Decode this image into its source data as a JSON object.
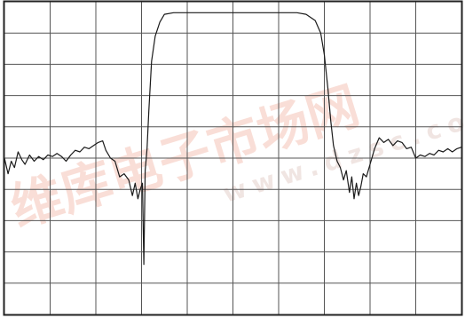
{
  "chart_data": {
    "type": "line",
    "title": "",
    "xlabel": "",
    "ylabel": "",
    "grid": true,
    "grid_divisions": {
      "x": 10,
      "y": 10
    },
    "xlim": [
      0,
      10
    ],
    "ylim": [
      0,
      10
    ],
    "series": [
      {
        "points": [
          [
            0.0,
            5.0
          ],
          [
            0.08,
            4.5
          ],
          [
            0.15,
            4.9
          ],
          [
            0.22,
            4.7
          ],
          [
            0.3,
            5.2
          ],
          [
            0.38,
            4.95
          ],
          [
            0.45,
            4.8
          ],
          [
            0.55,
            5.1
          ],
          [
            0.65,
            4.9
          ],
          [
            0.75,
            5.05
          ],
          [
            0.85,
            4.95
          ],
          [
            0.95,
            5.1
          ],
          [
            1.05,
            5.05
          ],
          [
            1.15,
            5.15
          ],
          [
            1.25,
            5.05
          ],
          [
            1.35,
            4.9
          ],
          [
            1.45,
            5.1
          ],
          [
            1.55,
            5.25
          ],
          [
            1.65,
            5.2
          ],
          [
            1.75,
            5.35
          ],
          [
            1.85,
            5.3
          ],
          [
            1.95,
            5.4
          ],
          [
            2.05,
            5.5
          ],
          [
            2.15,
            5.55
          ],
          [
            2.22,
            5.25
          ],
          [
            2.32,
            5.0
          ],
          [
            2.42,
            4.9
          ],
          [
            2.52,
            4.4
          ],
          [
            2.62,
            4.5
          ],
          [
            2.72,
            4.3
          ],
          [
            2.8,
            3.8
          ],
          [
            2.86,
            4.2
          ],
          [
            2.92,
            3.7
          ],
          [
            2.97,
            4.0
          ],
          [
            3.02,
            4.2
          ],
          [
            3.05,
            1.6
          ],
          [
            3.08,
            4.6
          ],
          [
            3.12,
            5.3
          ],
          [
            3.16,
            6.5
          ],
          [
            3.22,
            8.1
          ],
          [
            3.3,
            8.9
          ],
          [
            3.4,
            9.35
          ],
          [
            3.5,
            9.6
          ],
          [
            3.7,
            9.65
          ],
          [
            4.2,
            9.65
          ],
          [
            5.0,
            9.65
          ],
          [
            5.8,
            9.65
          ],
          [
            6.4,
            9.65
          ],
          [
            6.6,
            9.6
          ],
          [
            6.8,
            9.4
          ],
          [
            6.92,
            9.0
          ],
          [
            7.0,
            8.3
          ],
          [
            7.08,
            7.2
          ],
          [
            7.14,
            6.2
          ],
          [
            7.2,
            5.4
          ],
          [
            7.28,
            4.9
          ],
          [
            7.35,
            4.7
          ],
          [
            7.42,
            4.3
          ],
          [
            7.48,
            4.6
          ],
          [
            7.55,
            3.9
          ],
          [
            7.6,
            4.4
          ],
          [
            7.65,
            3.7
          ],
          [
            7.7,
            4.2
          ],
          [
            7.75,
            3.8
          ],
          [
            7.8,
            4.1
          ],
          [
            7.85,
            4.5
          ],
          [
            7.92,
            4.4
          ],
          [
            8.0,
            4.8
          ],
          [
            8.1,
            5.3
          ],
          [
            8.2,
            5.65
          ],
          [
            8.3,
            5.5
          ],
          [
            8.4,
            5.6
          ],
          [
            8.5,
            5.4
          ],
          [
            8.6,
            5.55
          ],
          [
            8.7,
            5.5
          ],
          [
            8.8,
            5.3
          ],
          [
            8.9,
            5.35
          ],
          [
            9.0,
            5.0
          ],
          [
            9.1,
            5.1
          ],
          [
            9.2,
            5.05
          ],
          [
            9.3,
            5.15
          ],
          [
            9.4,
            5.1
          ],
          [
            9.5,
            5.25
          ],
          [
            9.6,
            5.2
          ],
          [
            9.7,
            5.3
          ],
          [
            9.8,
            5.2
          ],
          [
            9.9,
            5.3
          ],
          [
            10.0,
            5.35
          ]
        ]
      }
    ]
  },
  "watermark": {
    "chinese": "维库电子市场网",
    "url": "www.dzsc.com",
    "color": "#f2b8a8"
  },
  "colors": {
    "background": "#ffffff",
    "grid": "#555555",
    "border": "#222222",
    "trace": "#1a1a1a"
  }
}
